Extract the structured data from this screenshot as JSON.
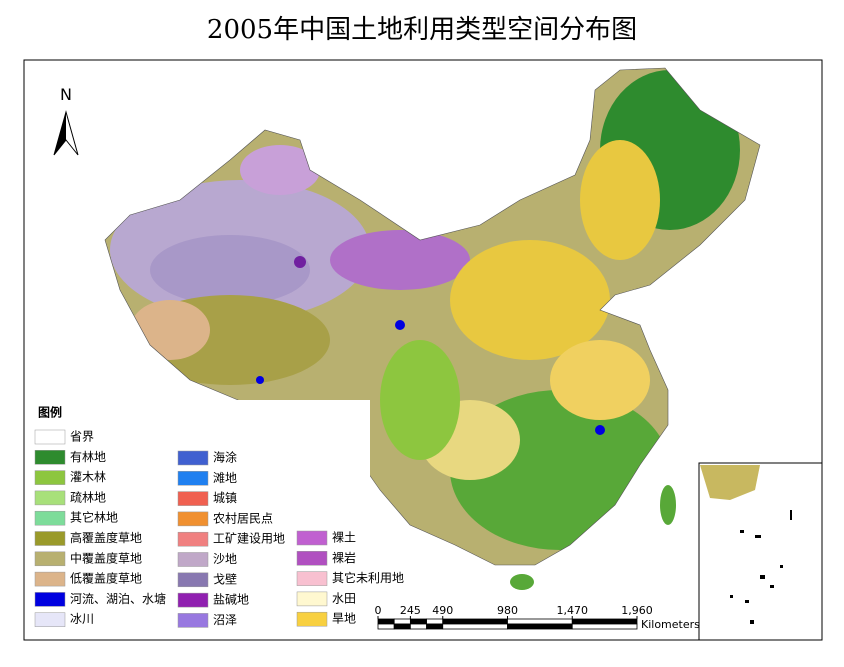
{
  "title": "2005年中国土地利用类型空间分布图",
  "north_arrow": "N",
  "legend": {
    "title": "图例",
    "columns": [
      [
        {
          "label": "省界",
          "color": "#ffffff"
        },
        {
          "label": "有林地",
          "color": "#2e8b2e"
        },
        {
          "label": "灌木林",
          "color": "#8dc63f"
        },
        {
          "label": "疏林地",
          "color": "#a8e07a"
        },
        {
          "label": "其它林地",
          "color": "#7ddc9a"
        },
        {
          "label": "高覆盖度草地",
          "color": "#9a9a2a"
        },
        {
          "label": "中覆盖度草地",
          "color": "#b8b070"
        },
        {
          "label": "低覆盖度草地",
          "color": "#dcb48a"
        },
        {
          "label": "河流、湖泊、水塘",
          "color": "#0000e0"
        },
        {
          "label": "冰川",
          "color": "#e6e6f8"
        }
      ],
      [
        {
          "label": "海涂",
          "color": "#4060d0"
        },
        {
          "label": "滩地",
          "color": "#2080f0"
        },
        {
          "label": "城镇",
          "color": "#f06050"
        },
        {
          "label": "农村居民点",
          "color": "#f09030"
        },
        {
          "label": "工矿建设用地",
          "color": "#f08080"
        },
        {
          "label": "沙地",
          "color": "#c0a8c8"
        },
        {
          "label": "戈壁",
          "color": "#8878b0"
        },
        {
          "label": "盐碱地",
          "color": "#9020b0"
        },
        {
          "label": "沼泽",
          "color": "#9878e0"
        }
      ],
      [
        {
          "label": "裸土",
          "color": "#c060d0"
        },
        {
          "label": "裸岩",
          "color": "#b050c0"
        },
        {
          "label": "其它未利用地",
          "color": "#f8c0d0"
        },
        {
          "label": "水田",
          "color": "#fff8d0"
        },
        {
          "label": "旱地",
          "color": "#f8d040"
        }
      ]
    ]
  },
  "scale_bar": {
    "ticks": [
      0,
      245,
      490,
      980,
      {
        "value": 1470,
        "label": "1,470"
      },
      {
        "value": 1960,
        "label": "1,960"
      }
    ],
    "unit": "Kilometers"
  }
}
